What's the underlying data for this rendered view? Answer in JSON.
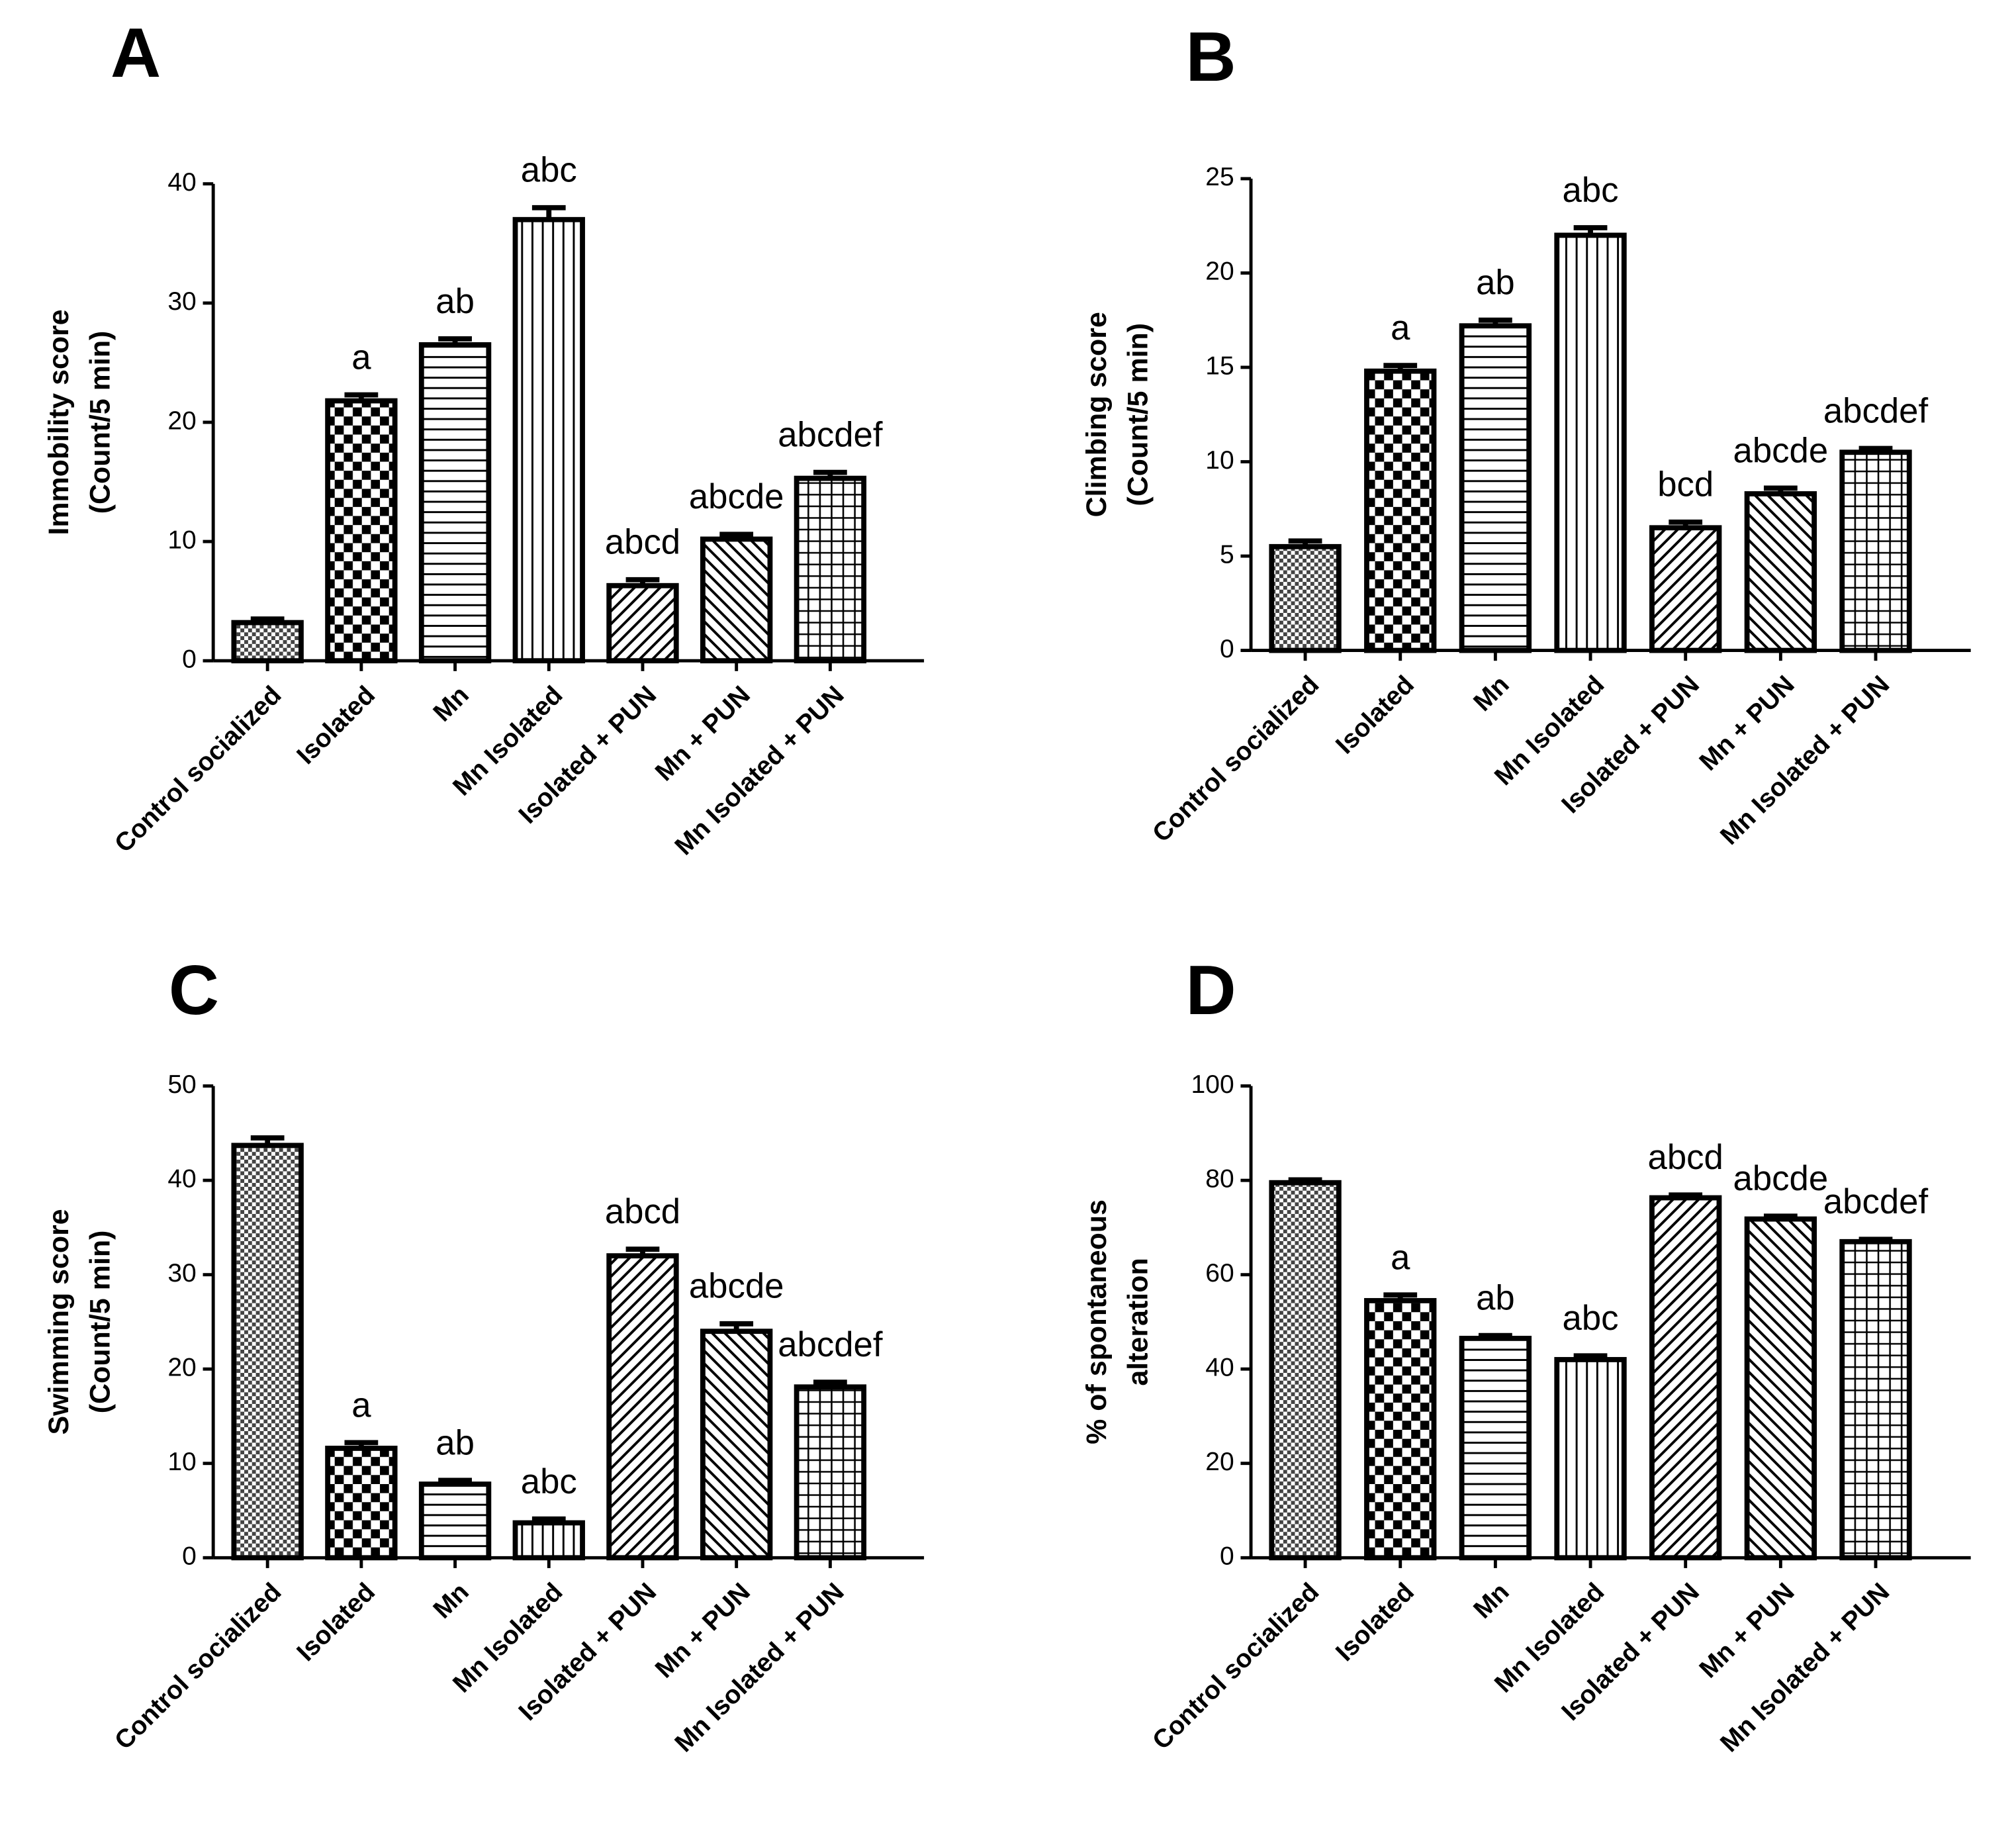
{
  "chart_data": [
    {
      "type": "bar",
      "panel": "A",
      "ylabel": [
        "Immobility score",
        "(Count/5 min)"
      ],
      "categories": [
        "Control socialized",
        "Isolated",
        "Mn",
        "Mn Isolated",
        "Isolated + PUN",
        "Mn + PUN",
        "Mn Isolated + PUN"
      ],
      "values": [
        3.2,
        21.8,
        26.5,
        37.0,
        6.3,
        10.2,
        15.3
      ],
      "errors": [
        0.3,
        0.5,
        0.5,
        1.0,
        0.5,
        0.4,
        0.5
      ],
      "value_labels": [
        null,
        "a",
        "ab",
        "abc",
        "abcd",
        "abcde",
        "abcdef"
      ],
      "ylim": [
        0,
        40
      ],
      "yticks": [
        0,
        10,
        20,
        30,
        40
      ]
    },
    {
      "type": "bar",
      "panel": "B",
      "ylabel": [
        "Climbing score",
        "(Count/5 min)"
      ],
      "categories": [
        "Control socialized",
        "Isolated",
        "Mn",
        "Mn Isolated",
        "Isolated + PUN",
        "Mn + PUN",
        "Mn Isolated + PUN"
      ],
      "values": [
        5.5,
        14.8,
        17.2,
        22.0,
        6.5,
        8.3,
        10.5
      ],
      "errors": [
        0.3,
        0.3,
        0.3,
        0.4,
        0.3,
        0.3,
        0.2
      ],
      "value_labels": [
        null,
        "a",
        "ab",
        "abc",
        "bcd",
        "abcde",
        "abcdef"
      ],
      "ylim": [
        0,
        25
      ],
      "yticks": [
        0,
        5,
        10,
        15,
        20,
        25
      ]
    },
    {
      "type": "bar",
      "panel": "C",
      "ylabel": [
        "Swimming score",
        "(Count/5 min)"
      ],
      "categories": [
        "Control socialized",
        "Isolated",
        "Mn",
        "Mn Isolated",
        "Isolated + PUN",
        "Mn + PUN",
        "Mn Isolated + PUN"
      ],
      "values": [
        43.7,
        11.6,
        7.8,
        3.7,
        32.0,
        24.0,
        18.1
      ],
      "errors": [
        0.8,
        0.6,
        0.4,
        0.4,
        0.7,
        0.8,
        0.5
      ],
      "value_labels": [
        null,
        "a",
        "ab",
        "abc",
        "abcd",
        "abcde",
        "abcdef"
      ],
      "ylim": [
        0,
        50
      ],
      "yticks": [
        0,
        10,
        20,
        30,
        40,
        50
      ]
    },
    {
      "type": "bar",
      "panel": "D",
      "ylabel": [
        "% of spontaneous",
        "alteration"
      ],
      "categories": [
        "Control socialized",
        "Isolated",
        "Mn",
        "Mn Isolated",
        "Isolated + PUN",
        "Mn + PUN",
        "Mn Isolated + PUN"
      ],
      "values": [
        79.5,
        54.5,
        46.5,
        42.0,
        76.3,
        71.8,
        67.0
      ],
      "errors": [
        0.6,
        1.2,
        0.6,
        0.8,
        0.6,
        0.6,
        0.5
      ],
      "value_labels": [
        null,
        "a",
        "ab",
        "abc",
        "abcd",
        "abcde",
        "abcdef"
      ],
      "ylim": [
        0,
        100
      ],
      "yticks": [
        0,
        20,
        40,
        60,
        80,
        100
      ]
    }
  ]
}
